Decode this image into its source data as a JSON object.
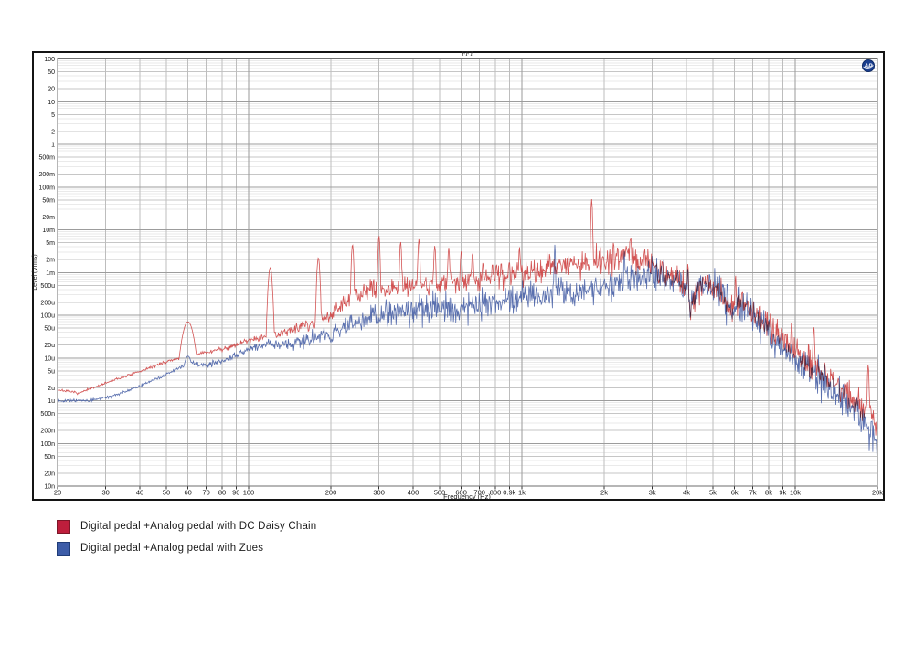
{
  "panel": {
    "title": "FFT",
    "logo_text": "AP"
  },
  "chart_data": {
    "type": "line",
    "title": "FFT",
    "xlabel": "Frequency (Hz)",
    "ylabel": "Level (Vrms)",
    "x_scale": "log",
    "y_scale": "log",
    "xlim": [
      20,
      20000
    ],
    "ylim": [
      1e-08,
      100
    ],
    "grid": true,
    "legend_position": "below-left",
    "x_ticks": [
      {
        "f": 20,
        "label": "20"
      },
      {
        "f": 30,
        "label": "30"
      },
      {
        "f": 40,
        "label": "40"
      },
      {
        "f": 50,
        "label": "50"
      },
      {
        "f": 60,
        "label": "60"
      },
      {
        "f": 70,
        "label": "70"
      },
      {
        "f": 80,
        "label": "80"
      },
      {
        "f": 90,
        "label": "90"
      },
      {
        "f": 100,
        "label": "100"
      },
      {
        "f": 200,
        "label": "200"
      },
      {
        "f": 300,
        "label": "300"
      },
      {
        "f": 400,
        "label": "400"
      },
      {
        "f": 500,
        "label": "500"
      },
      {
        "f": 600,
        "label": "600"
      },
      {
        "f": 700,
        "label": "700"
      },
      {
        "f": 800,
        "label": "800"
      },
      {
        "f": 900,
        "label": "0.9k"
      },
      {
        "f": 1000,
        "label": "1k"
      },
      {
        "f": 2000,
        "label": "2k"
      },
      {
        "f": 3000,
        "label": "3k"
      },
      {
        "f": 4000,
        "label": "4k"
      },
      {
        "f": 5000,
        "label": "5k"
      },
      {
        "f": 6000,
        "label": "6k"
      },
      {
        "f": 7000,
        "label": "7k"
      },
      {
        "f": 8000,
        "label": "8k"
      },
      {
        "f": 9000,
        "label": "9k"
      },
      {
        "f": 10000,
        "label": "10k"
      },
      {
        "f": 20000,
        "label": "20k"
      }
    ],
    "y_ticks": [
      {
        "v": 100,
        "label": "100"
      },
      {
        "v": 50,
        "label": "50"
      },
      {
        "v": 20,
        "label": "20"
      },
      {
        "v": 10,
        "label": "10"
      },
      {
        "v": 5,
        "label": "5"
      },
      {
        "v": 2,
        "label": "2"
      },
      {
        "v": 1,
        "label": "1"
      },
      {
        "v": 0.5,
        "label": "500m"
      },
      {
        "v": 0.2,
        "label": "200m"
      },
      {
        "v": 0.1,
        "label": "100m"
      },
      {
        "v": 0.05,
        "label": "50m"
      },
      {
        "v": 0.02,
        "label": "20m"
      },
      {
        "v": 0.01,
        "label": "10m"
      },
      {
        "v": 0.005,
        "label": "5m"
      },
      {
        "v": 0.002,
        "label": "2m"
      },
      {
        "v": 0.001,
        "label": "1m"
      },
      {
        "v": 0.0005,
        "label": "500u"
      },
      {
        "v": 0.0002,
        "label": "200u"
      },
      {
        "v": 0.0001,
        "label": "100u"
      },
      {
        "v": 5e-05,
        "label": "50u"
      },
      {
        "v": 2e-05,
        "label": "20u"
      },
      {
        "v": 1e-05,
        "label": "10u"
      },
      {
        "v": 5e-06,
        "label": "5u"
      },
      {
        "v": 2e-06,
        "label": "2u"
      },
      {
        "v": 1e-06,
        "label": "1u"
      },
      {
        "v": 5e-07,
        "label": "500n"
      },
      {
        "v": 2e-07,
        "label": "200n"
      },
      {
        "v": 1e-07,
        "label": "100n"
      },
      {
        "v": 5e-08,
        "label": "50n"
      },
      {
        "v": 2e-08,
        "label": "20n"
      },
      {
        "v": 1e-08,
        "label": "10n"
      }
    ],
    "points_per_trace": 1400,
    "noise_db_profile": [
      [
        20,
        0.25
      ],
      [
        60,
        0.35
      ],
      [
        100,
        0.7
      ],
      [
        150,
        1.3
      ],
      [
        250,
        2.2
      ],
      [
        400,
        2.8
      ],
      [
        700,
        3.0
      ],
      [
        1500,
        3.0
      ],
      [
        3000,
        3.3
      ],
      [
        6000,
        3.5
      ],
      [
        12000,
        3.6
      ],
      [
        20000,
        4.2
      ]
    ],
    "series": [
      {
        "name": "Digital pedal +Analog pedal with DC Daisy Chain",
        "color": "#cf4747",
        "seed": 7,
        "noise_scale": 1.0,
        "envelope": [
          [
            20,
            1.8e-06
          ],
          [
            24,
            1.5e-06
          ],
          [
            28,
            2.2e-06
          ],
          [
            33,
            3.2e-06
          ],
          [
            40,
            4.8e-06
          ],
          [
            48,
            7.5e-06
          ],
          [
            56,
            1e-05
          ],
          [
            64,
            1.2e-05
          ],
          [
            72,
            1.4e-05
          ],
          [
            85,
            1.8e-05
          ],
          [
            100,
            2.6e-05
          ],
          [
            115,
            3.2e-05
          ],
          [
            130,
            3.6e-05
          ],
          [
            150,
            5.5e-05
          ],
          [
            170,
            6e-05
          ],
          [
            200,
            0.00011
          ],
          [
            230,
            0.00022
          ],
          [
            260,
            0.00033
          ],
          [
            300,
            0.00042
          ],
          [
            360,
            0.00048
          ],
          [
            430,
            0.00052
          ],
          [
            520,
            0.00056
          ],
          [
            620,
            0.00062
          ],
          [
            720,
            0.00068
          ],
          [
            820,
            0.00076
          ],
          [
            920,
            0.00088
          ],
          [
            1050,
            0.00105
          ],
          [
            1250,
            0.0013
          ],
          [
            1500,
            0.00155
          ],
          [
            1800,
            0.0018
          ],
          [
            2100,
            0.0022
          ],
          [
            2400,
            0.0026
          ],
          [
            2650,
            0.0023
          ],
          [
            2900,
            0.0017
          ],
          [
            3200,
            0.0011
          ],
          [
            3600,
            0.00075
          ],
          [
            3950,
            0.00055
          ],
          [
            4150,
            0.00013
          ],
          [
            4450,
            0.00048
          ],
          [
            4800,
            0.00058
          ],
          [
            5200,
            0.00045
          ],
          [
            5500,
            0.00028
          ],
          [
            5900,
            0.00011
          ],
          [
            6300,
            0.00024
          ],
          [
            6800,
            0.00015
          ],
          [
            7400,
            9.5e-05
          ],
          [
            8000,
            6e-05
          ],
          [
            8700,
            3.4e-05
          ],
          [
            9500,
            2e-05
          ],
          [
            10500,
            1.1e-05
          ],
          [
            12000,
            5.5e-06
          ],
          [
            13500,
            3e-06
          ],
          [
            15000,
            1.7e-06
          ],
          [
            16500,
            9.5e-07
          ],
          [
            18000,
            5.5e-07
          ],
          [
            19200,
            3.6e-07
          ],
          [
            20000,
            1.8e-07
          ]
        ],
        "spikes": [
          [
            60,
            7e-05,
            0.035
          ],
          [
            120,
            0.0013,
            0.012
          ],
          [
            180,
            0.0022,
            0.009
          ],
          [
            240,
            0.0045,
            0.007
          ],
          [
            300,
            0.0072,
            0.006
          ],
          [
            360,
            0.0052,
            0.006
          ],
          [
            420,
            0.006,
            0.006
          ],
          [
            480,
            0.0042,
            0.006
          ],
          [
            540,
            0.0038,
            0.006
          ],
          [
            600,
            0.0032,
            0.006
          ],
          [
            660,
            0.0029,
            0.006
          ],
          [
            720,
            0.0017,
            0.006
          ],
          [
            780,
            0.0016,
            0.006
          ],
          [
            840,
            0.0017,
            0.006
          ],
          [
            900,
            0.0018,
            0.006
          ],
          [
            980,
            0.004,
            0.005
          ],
          [
            1800,
            0.052,
            0.005
          ],
          [
            2500,
            0.0065,
            0.006
          ],
          [
            4050,
            0.0017,
            0.004
          ],
          [
            6050,
            0.0009,
            0.004
          ],
          [
            9700,
            7e-05,
            0.005
          ],
          [
            11700,
            5.5e-05,
            0.005
          ],
          [
            18500,
            7e-06,
            0.005
          ]
        ]
      },
      {
        "name": "Digital pedal +Analog pedal with Zues",
        "color": "#4c64a8",
        "seed": 13,
        "noise_scale": 1.15,
        "envelope": [
          [
            20,
            1e-06
          ],
          [
            26,
            1e-06
          ],
          [
            32,
            1.3e-06
          ],
          [
            40,
            2.2e-06
          ],
          [
            48,
            3.6e-06
          ],
          [
            56,
            6e-06
          ],
          [
            62,
            7.5e-06
          ],
          [
            70,
            6.8e-06
          ],
          [
            80,
            8.5e-06
          ],
          [
            100,
            1.6e-05
          ],
          [
            120,
            2.2e-05
          ],
          [
            140,
            2.1e-05
          ],
          [
            165,
            2.6e-05
          ],
          [
            200,
            3.6e-05
          ],
          [
            240,
            6e-05
          ],
          [
            280,
            9e-05
          ],
          [
            330,
            0.00012
          ],
          [
            400,
            0.00014
          ],
          [
            480,
            0.00015
          ],
          [
            560,
            0.00015
          ],
          [
            660,
            0.00017
          ],
          [
            780,
            0.000195
          ],
          [
            900,
            0.00022
          ],
          [
            1000,
            0.00026
          ],
          [
            1200,
            0.0003
          ],
          [
            1450,
            0.00033
          ],
          [
            1750,
            0.0004
          ],
          [
            2050,
            0.00048
          ],
          [
            2350,
            0.00058
          ],
          [
            2650,
            0.00078
          ],
          [
            2950,
            0.0009
          ],
          [
            3250,
            0.0008
          ],
          [
            3600,
            0.00066
          ],
          [
            3950,
            0.0005
          ],
          [
            4150,
            0.00012
          ],
          [
            4450,
            0.00044
          ],
          [
            4800,
            0.00052
          ],
          [
            5200,
            0.0004
          ],
          [
            5500,
            0.00025
          ],
          [
            5900,
            0.0001
          ],
          [
            6300,
            0.00021
          ],
          [
            6800,
            0.000125
          ],
          [
            7400,
            7.5e-05
          ],
          [
            8000,
            4.2e-05
          ],
          [
            8700,
            2.3e-05
          ],
          [
            9500,
            1.3e-05
          ],
          [
            10500,
            7e-06
          ],
          [
            12000,
            3.4e-06
          ],
          [
            13500,
            1.8e-06
          ],
          [
            15000,
            1e-06
          ],
          [
            16500,
            5.5e-07
          ],
          [
            18000,
            3e-07
          ],
          [
            19200,
            1.8e-07
          ],
          [
            20000,
            6e-08
          ]
        ],
        "spikes": [
          [
            60,
            1.1e-05,
            0.03
          ],
          [
            1320,
            0.0045,
            0.004
          ],
          [
            2370,
            0.0033,
            0.004
          ],
          [
            4050,
            0.0013,
            0.004
          ]
        ]
      }
    ]
  },
  "legend": {
    "items": [
      {
        "label": "Digital pedal +Analog pedal with DC Daisy Chain",
        "color": "#be1e3c",
        "border": "#7c1628"
      },
      {
        "label": "Digital pedal +Analog pedal with Zues",
        "color": "#3c5ca8",
        "border": "#1f3c78"
      }
    ]
  }
}
